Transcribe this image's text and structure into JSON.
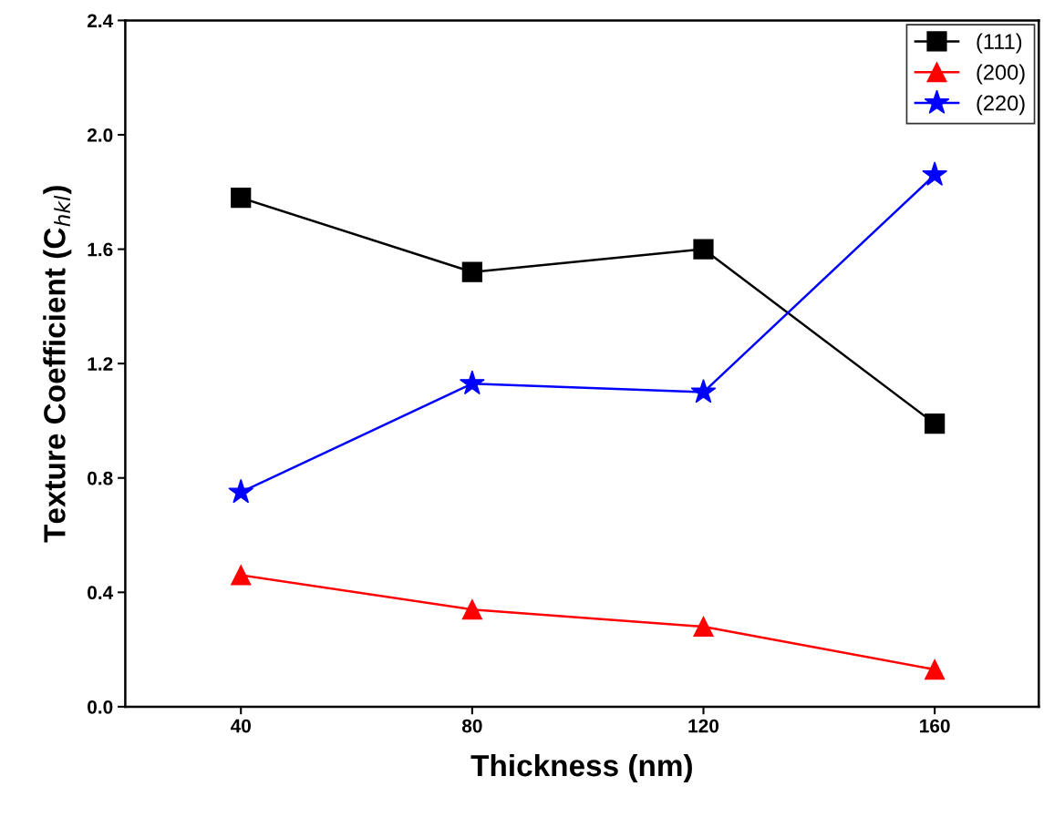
{
  "chart_data": {
    "type": "line",
    "xlabel": "Thickness (nm)",
    "ylabel": "Texture Coefficient (C$_{hkl}$)",
    "x": [
      40,
      80,
      120,
      160
    ],
    "series": [
      {
        "name": "(111)",
        "color": "#000000",
        "marker": "square",
        "values": [
          1.78,
          1.52,
          1.6,
          0.99
        ]
      },
      {
        "name": "(200)",
        "color": "#ff0000",
        "marker": "triangle",
        "values": [
          0.46,
          0.34,
          0.28,
          0.13
        ]
      },
      {
        "name": "(220)",
        "color": "#0000ff",
        "marker": "star",
        "values": [
          0.75,
          1.13,
          1.1,
          1.86
        ]
      }
    ],
    "xlim": [
      20,
      178
    ],
    "xticks": [
      40,
      80,
      120,
      160
    ],
    "ylim": [
      0.0,
      2.4
    ],
    "yticks": [
      {
        "value": 0,
        "label": "0.0"
      },
      {
        "value": 0.4,
        "label": "0.4"
      },
      {
        "value": 0.8,
        "label": "0.8"
      },
      {
        "value": 1.2,
        "label": "1.2"
      },
      {
        "value": 1.6,
        "label": "1.6"
      },
      {
        "value": 2.0,
        "label": "2.0"
      },
      {
        "value": 2.4,
        "label": "2.4"
      }
    ],
    "grid": false,
    "legend": "top right",
    "line_style": "solid"
  }
}
